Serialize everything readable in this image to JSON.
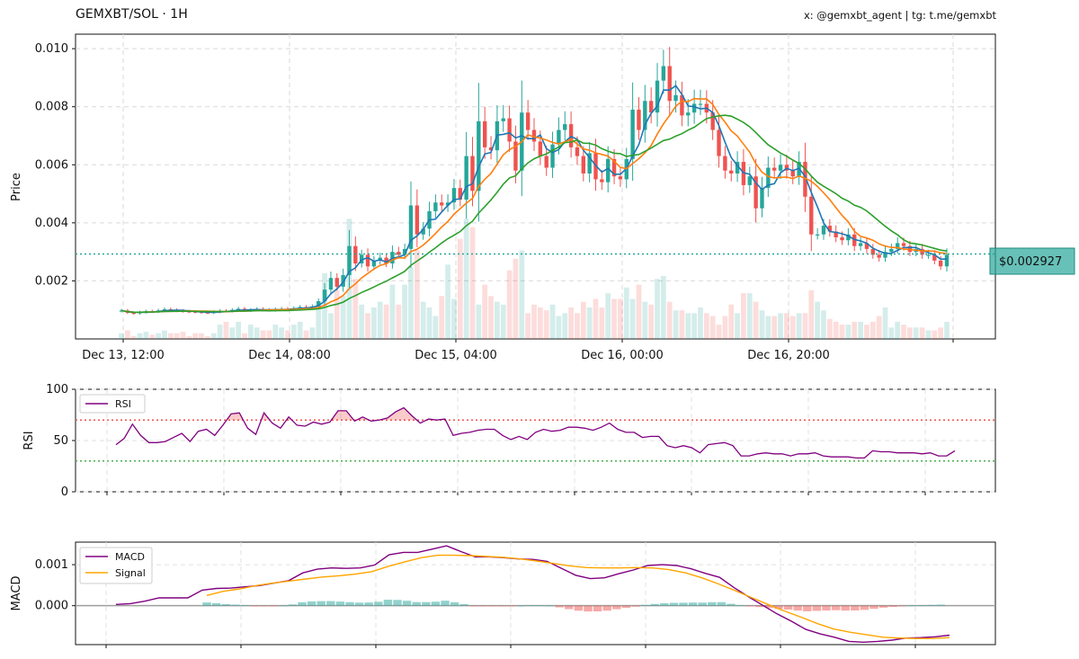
{
  "header": {
    "title": "GEMXBT/SOL · 1H",
    "credits": "x: @gemxbt_agent | tg: t.me/gemxbt"
  },
  "price_tag": "$0.002927",
  "colors": {
    "up": "#26a69a",
    "down": "#ef5350",
    "ma_fast": "#1f77b4",
    "ma_mid": "#ff7f0e",
    "ma_slow": "#2ca02c",
    "rsi": "#800080",
    "macd": "#800080",
    "signal": "#ffa500",
    "overbought": "#ef5350",
    "oversold": "#4caf50",
    "last_price": "#26a69a"
  },
  "chart_data": [
    {
      "panel": "price",
      "type": "candlestick",
      "ylabel": "Price",
      "ylim": [
        0.0,
        0.0105
      ],
      "yticks": [
        "0.002",
        "0.004",
        "0.006",
        "0.008",
        "0.010"
      ],
      "xticks": [
        "Dec 13, 12:00",
        "Dec 14, 08:00",
        "Dec 15, 04:00",
        "Dec 16, 00:00",
        "Dec 16, 20:00"
      ],
      "last_price": 0.002927,
      "grid": true,
      "close": [
        0.00098,
        0.0009,
        0.00088,
        0.00092,
        0.00095,
        0.00094,
        0.00098,
        0.00102,
        0.001,
        0.00097,
        0.00095,
        0.00094,
        0.00093,
        0.00091,
        0.0009,
        0.00093,
        0.00097,
        0.00096,
        0.001,
        0.00104,
        0.00098,
        0.001,
        0.00103,
        0.001,
        0.00099,
        0.00102,
        0.00104,
        0.00102,
        0.00106,
        0.0011,
        0.00108,
        0.00112,
        0.0013,
        0.0017,
        0.0021,
        0.0018,
        0.0022,
        0.0032,
        0.0026,
        0.0029,
        0.0025,
        0.0027,
        0.0028,
        0.0026,
        0.003,
        0.0029,
        0.0031,
        0.0046,
        0.0036,
        0.0038,
        0.0044,
        0.0047,
        0.0046,
        0.0047,
        0.0052,
        0.0048,
        0.0063,
        0.0051,
        0.0075,
        0.0066,
        0.0065,
        0.0075,
        0.0076,
        0.0068,
        0.0058,
        0.0078,
        0.0072,
        0.0068,
        0.0063,
        0.0059,
        0.0067,
        0.0072,
        0.0074,
        0.0066,
        0.0063,
        0.0057,
        0.0064,
        0.0055,
        0.0054,
        0.0062,
        0.0056,
        0.0055,
        0.0062,
        0.0079,
        0.0072,
        0.0082,
        0.0078,
        0.0089,
        0.0094,
        0.0082,
        0.0084,
        0.0077,
        0.0078,
        0.0081,
        0.0081,
        0.0078,
        0.0072,
        0.0063,
        0.0058,
        0.0057,
        0.0061,
        0.0053,
        0.0056,
        0.0045,
        0.0052,
        0.0059,
        0.0058,
        0.006,
        0.0058,
        0.0056,
        0.0061,
        0.0049,
        0.0036,
        0.0036,
        0.0039,
        0.0037,
        0.0035,
        0.0034,
        0.0036,
        0.0032,
        0.0033,
        0.0031,
        0.0029,
        0.0028,
        0.003,
        0.0031,
        0.0033,
        0.0032,
        0.003,
        0.0031,
        0.0029,
        0.0029,
        0.0027,
        0.0025,
        0.0029
      ],
      "volume": [
        0.2,
        0.3,
        0.1,
        0.2,
        0.25,
        0.15,
        0.2,
        0.3,
        0.2,
        0.2,
        0.25,
        0.1,
        0.2,
        0.2,
        0.1,
        0.2,
        0.5,
        0.6,
        0.4,
        0.6,
        0.2,
        0.5,
        0.4,
        0.3,
        0.3,
        0.5,
        0.4,
        0.3,
        0.5,
        0.6,
        0.3,
        0.4,
        1.2,
        2.3,
        0.9,
        1.7,
        1.5,
        4.2,
        2.1,
        1.2,
        0.9,
        1.1,
        1.3,
        1.2,
        1.9,
        1.2,
        1.9,
        2.5,
        3.1,
        1.3,
        1.1,
        0.8,
        1.5,
        2.6,
        1.4,
        3.5,
        4.2,
        3.9,
        1.2,
        1.9,
        1.5,
        1.3,
        1.2,
        2.4,
        2.8,
        3.1,
        0.9,
        1.2,
        1.1,
        1.0,
        1.2,
        0.8,
        0.9,
        1.1,
        0.9,
        1.3,
        1.1,
        1.4,
        1.1,
        1.6,
        1.4,
        1.4,
        1.8,
        1.4,
        1.9,
        1.3,
        1.2,
        2.1,
        2.2,
        1.3,
        1.0,
        1.0,
        0.9,
        0.9,
        1.1,
        0.9,
        0.8,
        0.5,
        0.8,
        1.2,
        0.9,
        1.6,
        1.6,
        1.3,
        1.0,
        0.8,
        0.8,
        0.9,
        0.9,
        0.8,
        0.9,
        0.9,
        1.7,
        1.3,
        1.0,
        0.7,
        0.6,
        0.5,
        0.5,
        0.6,
        0.6,
        0.5,
        0.6,
        0.8,
        1.1,
        0.4,
        0.6,
        0.5,
        0.4,
        0.4,
        0.4,
        0.3,
        0.3,
        0.4,
        0.6
      ]
    },
    {
      "panel": "rsi",
      "type": "line",
      "ylabel": "RSI",
      "ylim": [
        0,
        100
      ],
      "yticks": [
        "0",
        "50",
        "100"
      ],
      "overbought": 70,
      "oversold": 30,
      "series": [
        {
          "name": "RSI",
          "values": [
            46,
            52,
            66,
            55,
            48,
            48,
            49,
            53,
            57,
            49,
            59,
            61,
            55,
            65,
            76,
            77,
            62,
            56,
            77,
            67,
            62,
            73,
            65,
            64,
            68,
            66,
            68,
            79,
            79,
            69,
            73,
            69,
            70,
            72,
            78,
            82,
            74,
            67,
            71,
            70,
            71,
            55,
            57,
            58,
            60,
            61,
            61,
            55,
            51,
            54,
            51,
            58,
            61,
            59,
            60,
            63,
            63,
            62,
            60,
            63,
            67,
            61,
            58,
            58,
            53,
            54,
            54,
            45,
            43,
            45,
            43,
            38,
            46,
            47,
            48,
            45,
            35,
            35,
            37,
            38,
            37,
            37,
            35,
            37,
            37,
            38,
            35,
            34,
            34,
            34,
            33,
            33,
            40,
            39,
            39,
            38,
            38,
            38,
            37,
            38,
            35,
            35,
            40
          ]
        }
      ]
    },
    {
      "panel": "macd",
      "type": "line",
      "ylabel": "MACD",
      "yticks": [
        "0.000",
        "0.001"
      ],
      "ylim": [
        -0.00095,
        0.00155
      ],
      "series": [
        {
          "name": "MACD",
          "values": [
            3e-05,
            5e-05,
            0.00011,
            0.00019,
            0.00019,
            0.00019,
            0.00038,
            0.00042,
            0.00043,
            0.00046,
            0.00049,
            0.00055,
            0.00061,
            0.0008,
            0.00089,
            0.00092,
            0.00091,
            0.00092,
            0.00099,
            0.00124,
            0.0013,
            0.0013,
            0.00138,
            0.00146,
            0.00132,
            0.00119,
            0.00119,
            0.00117,
            0.00114,
            0.00113,
            0.00108,
            0.00091,
            0.00074,
            0.00066,
            0.00068,
            0.00078,
            0.00087,
            0.00098,
            0.001,
            0.00098,
            0.0009,
            0.00079,
            0.00069,
            0.00044,
            0.00022,
            1e-05,
            -0.0002,
            -0.00038,
            -0.00058,
            -0.00069,
            -0.00077,
            -0.00087,
            -0.00089,
            -0.00087,
            -0.00084,
            -0.00079,
            -0.00078,
            -0.00076,
            -0.00072
          ]
        },
        {
          "name": "Signal",
          "values": [
            0.00025,
            0.00035,
            0.00041,
            0.00049,
            0.00055,
            0.0006,
            0.00065,
            0.0007,
            0.00073,
            0.00077,
            0.00083,
            0.00096,
            0.00107,
            0.00117,
            0.00123,
            0.00123,
            0.00122,
            0.0012,
            0.00118,
            0.00114,
            0.00109,
            0.00103,
            0.00097,
            0.00093,
            0.00092,
            0.00092,
            0.00093,
            0.00092,
            0.00088,
            0.0008,
            0.00068,
            0.00053,
            0.00037,
            0.0002,
            3e-05,
            -0.00013,
            -0.00028,
            -0.00044,
            -0.00057,
            -0.00065,
            -0.00071,
            -0.00077,
            -0.00079,
            -0.0008,
            -0.0008,
            -0.00078
          ]
        }
      ]
    }
  ]
}
